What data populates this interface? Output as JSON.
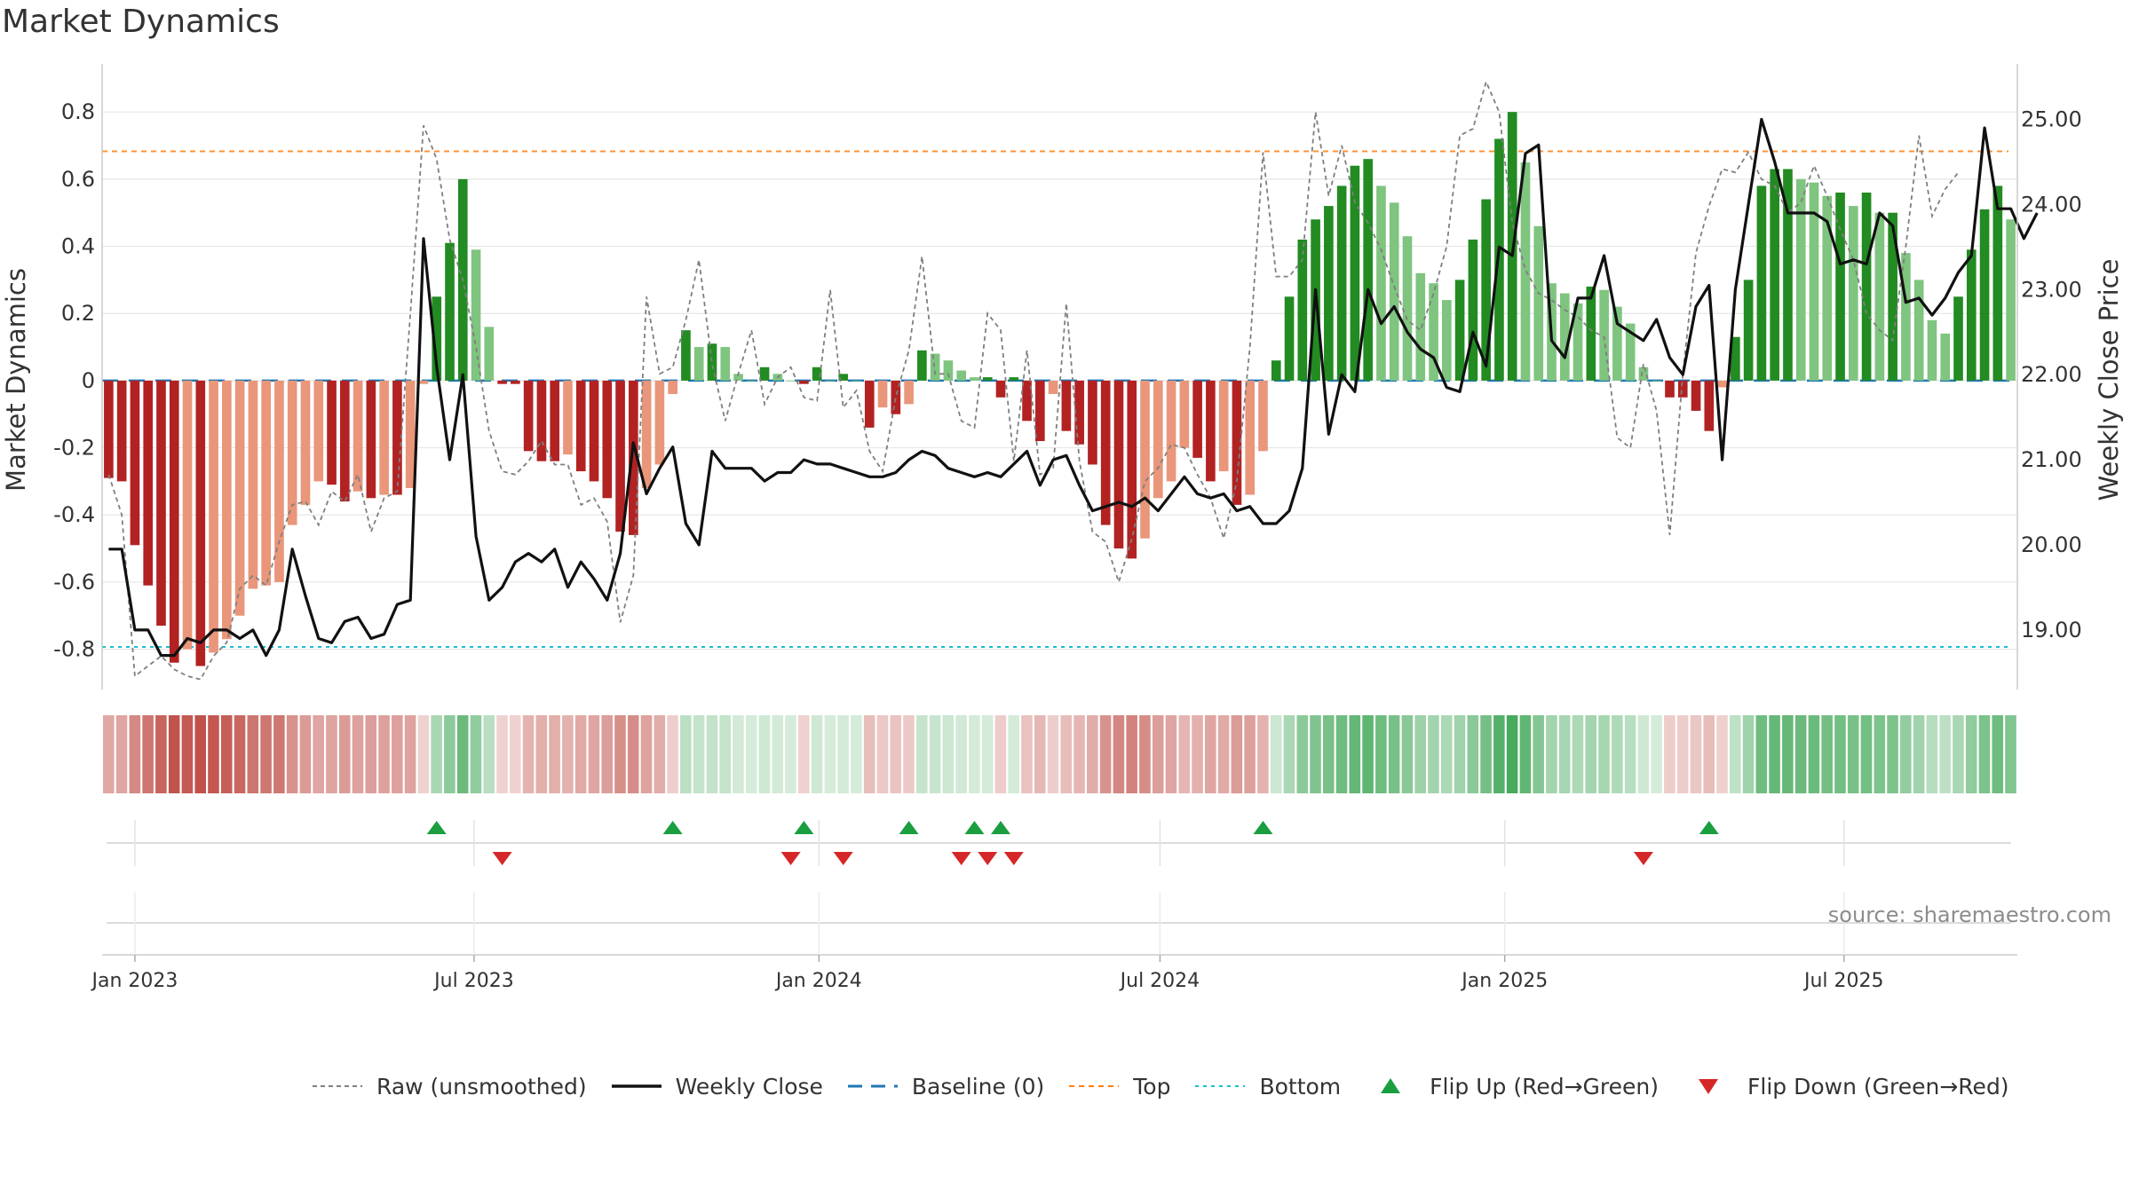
{
  "title": "Market Dynamics",
  "source_note": "source: sharemaestro.com",
  "colors": {
    "strong_red": "#b22222",
    "light_red": "#e9967a",
    "strong_green": "#228b22",
    "light_green": "#7fc47f",
    "raw": "#7f7f7f",
    "close": "#111111",
    "baseline": "#1f77b4",
    "top": "#ff7f0e",
    "bottom": "#17becf",
    "flip_up": "#1a9e3f",
    "flip_down": "#d62728"
  },
  "chart_data": {
    "type": "bar",
    "title": "Market Dynamics",
    "ylabel_left": "Market Dynamics",
    "ylabel_right": "Weekly Close Price",
    "y_left_ticks": [
      "0.8",
      "0.6",
      "0.4",
      "0.2",
      "0",
      "-0.2",
      "-0.4",
      "-0.6",
      "-0.8"
    ],
    "y_right_ticks": [
      "25.00",
      "24.00",
      "23.00",
      "22.00",
      "21.00",
      "20.00",
      "19.00"
    ],
    "x_ticks": [
      {
        "label": "Jan 2023",
        "date": "2023-01-01"
      },
      {
        "label": "Jul 2023",
        "date": "2023-07-01"
      },
      {
        "label": "Jan 2024",
        "date": "2024-01-01"
      },
      {
        "label": "Jul 2024",
        "date": "2024-07-01"
      },
      {
        "label": "Jan 2025",
        "date": "2025-01-01"
      },
      {
        "label": "Jul 2025",
        "date": "2025-07-01"
      }
    ],
    "ylim_left": [
      -0.92,
      0.93
    ],
    "ylim_right": [
      18.3,
      25.6
    ],
    "start_date": "2022-12-18",
    "weeks": 144,
    "top_threshold": 0.683,
    "bottom_threshold": -0.793,
    "grid": true,
    "legend_position": "bottom",
    "dynamics": [
      -0.29,
      -0.3,
      -0.49,
      -0.61,
      -0.73,
      -0.84,
      -0.8,
      -0.85,
      -0.81,
      -0.77,
      -0.7,
      -0.62,
      -0.61,
      -0.6,
      -0.43,
      -0.37,
      -0.3,
      -0.31,
      -0.36,
      -0.33,
      -0.35,
      -0.34,
      -0.34,
      -0.32,
      -0.01,
      0.25,
      0.41,
      0.6,
      0.39,
      0.16,
      -0.01,
      -0.01,
      -0.21,
      -0.24,
      -0.24,
      -0.22,
      -0.27,
      -0.3,
      -0.35,
      -0.45,
      -0.46,
      -0.32,
      -0.25,
      -0.04,
      0.15,
      0.1,
      0.11,
      0.1,
      0.02,
      0.0,
      0.04,
      0.02,
      0.0,
      -0.01,
      0.04,
      0.0,
      0.02,
      0.0,
      -0.14,
      -0.08,
      -0.1,
      -0.07,
      0.09,
      0.08,
      0.06,
      0.03,
      0.01,
      0.01,
      -0.05,
      0.01,
      -0.12,
      -0.18,
      -0.04,
      -0.15,
      -0.19,
      -0.25,
      -0.43,
      -0.5,
      -0.53,
      -0.47,
      -0.35,
      -0.3,
      -0.2,
      -0.23,
      -0.3,
      -0.27,
      -0.37,
      -0.34,
      -0.21,
      0.06,
      0.25,
      0.42,
      0.48,
      0.52,
      0.58,
      0.64,
      0.66,
      0.58,
      0.53,
      0.43,
      0.32,
      0.29,
      0.24,
      0.3,
      0.42,
      0.54,
      0.72,
      0.8,
      0.65,
      0.46,
      0.29,
      0.26,
      0.23,
      0.28,
      0.27,
      0.22,
      0.17,
      0.04,
      0.0,
      -0.05,
      -0.05,
      -0.09,
      -0.15,
      -0.02,
      0.13,
      0.3,
      0.58,
      0.63,
      0.63,
      0.6,
      0.59,
      0.55,
      0.56,
      0.52,
      0.56,
      0.5,
      0.5,
      0.38,
      0.3,
      0.18,
      0.14,
      0.25,
      0.39,
      0.51,
      0.58,
      0.48
    ],
    "raw": [
      -0.28,
      -0.4,
      -0.88,
      -0.85,
      -0.82,
      -0.86,
      -0.88,
      -0.89,
      -0.82,
      -0.78,
      -0.62,
      -0.58,
      -0.61,
      -0.48,
      -0.37,
      -0.36,
      -0.43,
      -0.33,
      -0.36,
      -0.28,
      -0.45,
      -0.35,
      -0.33,
      0.2,
      0.76,
      0.66,
      0.42,
      0.3,
      0.1,
      -0.15,
      -0.27,
      -0.28,
      -0.24,
      -0.18,
      -0.25,
      -0.25,
      -0.37,
      -0.35,
      -0.42,
      -0.72,
      -0.58,
      0.25,
      0.02,
      0.04,
      0.18,
      0.36,
      0.05,
      -0.12,
      0.02,
      0.15,
      -0.07,
      0.01,
      0.04,
      -0.05,
      -0.06,
      0.27,
      -0.08,
      -0.03,
      -0.21,
      -0.27,
      -0.05,
      0.09,
      0.37,
      0.02,
      0.02,
      -0.12,
      -0.14,
      0.2,
      0.15,
      -0.24,
      0.09,
      -0.28,
      -0.26,
      0.23,
      -0.24,
      -0.45,
      -0.48,
      -0.6,
      -0.47,
      -0.3,
      -0.26,
      -0.19,
      -0.2,
      -0.28,
      -0.35,
      -0.47,
      -0.3,
      0.1,
      0.68,
      0.31,
      0.31,
      0.36,
      0.8,
      0.55,
      0.7,
      0.53,
      0.47,
      0.39,
      0.28,
      0.18,
      0.15,
      0.26,
      0.4,
      0.73,
      0.75,
      0.89,
      0.8,
      0.47,
      0.33,
      0.26,
      0.24,
      0.21,
      0.19,
      0.15,
      0.13,
      -0.17,
      -0.2,
      0.05,
      -0.09,
      -0.46,
      0.02,
      0.38,
      0.52,
      0.63,
      0.62,
      0.68,
      0.6,
      0.58,
      0.5,
      0.53,
      0.64,
      0.55,
      0.45,
      0.36,
      0.2,
      0.15,
      0.12,
      0.4,
      0.73,
      0.49,
      0.57,
      0.62
    ],
    "close": [
      19.95,
      19.95,
      19.0,
      19.0,
      18.7,
      18.7,
      18.9,
      18.85,
      19.0,
      19.0,
      18.9,
      19.0,
      18.7,
      19.0,
      19.95,
      19.4,
      18.9,
      18.85,
      19.1,
      19.15,
      18.9,
      18.95,
      19.3,
      19.35,
      23.6,
      22.1,
      21.0,
      22.0,
      20.1,
      19.35,
      19.5,
      19.8,
      19.9,
      19.8,
      19.95,
      19.5,
      19.8,
      19.6,
      19.35,
      19.9,
      21.2,
      20.6,
      20.9,
      21.15,
      20.25,
      20.0,
      21.1,
      20.9,
      20.9,
      20.9,
      20.75,
      20.85,
      20.85,
      21.0,
      20.95,
      20.95,
      20.9,
      20.85,
      20.8,
      20.8,
      20.85,
      21.0,
      21.1,
      21.05,
      20.9,
      20.85,
      20.8,
      20.85,
      20.8,
      20.95,
      21.1,
      20.7,
      21.0,
      21.05,
      20.7,
      20.4,
      20.45,
      20.5,
      20.45,
      20.55,
      20.4,
      20.6,
      20.8,
      20.6,
      20.55,
      20.6,
      20.4,
      20.45,
      20.25,
      20.25,
      20.4,
      20.9,
      23.0,
      21.3,
      22.0,
      21.8,
      23.0,
      22.6,
      22.8,
      22.5,
      22.3,
      22.2,
      21.85,
      21.8,
      22.5,
      22.1,
      23.5,
      23.4,
      24.6,
      24.7,
      22.4,
      22.2,
      22.9,
      22.9,
      23.4,
      22.6,
      22.5,
      22.4,
      22.65,
      22.2,
      22.0,
      22.8,
      23.05,
      21.0,
      23.0,
      24.0,
      25.0,
      24.5,
      23.9,
      23.9,
      23.9,
      23.8,
      23.3,
      23.35,
      23.3,
      23.9,
      23.75,
      22.85,
      22.9,
      22.7,
      22.9,
      23.2,
      23.4,
      24.9,
      23.95,
      23.95,
      23.6,
      23.9
    ],
    "flip_up_weeks": [
      25,
      43,
      53,
      61,
      66,
      68,
      88,
      122
    ],
    "flip_down_weeks": [
      30,
      52,
      56,
      65,
      67,
      69,
      117
    ],
    "source_note": "source: sharemaestro.com"
  },
  "legend": [
    {
      "label": "Raw (unsmoothed)",
      "key": "raw"
    },
    {
      "label": "Weekly Close",
      "key": "close"
    },
    {
      "label": "Baseline (0)",
      "key": "baseline"
    },
    {
      "label": "Top",
      "key": "top"
    },
    {
      "label": "Bottom",
      "key": "bottom"
    },
    {
      "label": "Flip Up (Red→Green)",
      "key": "flip_up"
    },
    {
      "label": "Flip Down (Green→Red)",
      "key": "flip_down"
    }
  ]
}
